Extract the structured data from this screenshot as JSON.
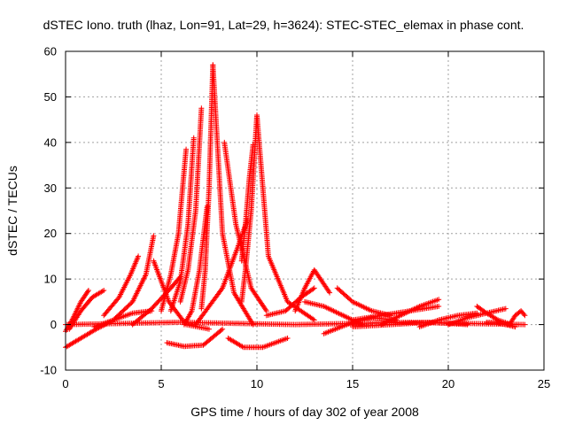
{
  "chart_data": {
    "type": "scatter",
    "title": "dSTEC Iono. truth (lhaz, Lon=91, Lat=29, h=3624): STEC-STEC_elemax in phase cont.",
    "xlabel": "GPS time / hours of day 302 of year 2008",
    "ylabel": "dSTEC  / TECUs",
    "xlim": [
      0,
      25
    ],
    "ylim": [
      -10,
      60
    ],
    "x_ticks": [
      0,
      5,
      10,
      15,
      20,
      25
    ],
    "y_ticks": [
      -10,
      0,
      10,
      20,
      30,
      40,
      50,
      60
    ],
    "grid": true,
    "marker": "+",
    "color": "#ff0000",
    "series": [
      {
        "x": [
          0.0,
          0.4,
          0.8,
          1.2
        ],
        "y": [
          -1.5,
          1.5,
          5.0,
          7.5
        ]
      },
      {
        "x": [
          0.2,
          0.8,
          1.4,
          2.0
        ],
        "y": [
          -1.0,
          3.0,
          6.0,
          7.5
        ]
      },
      {
        "x": [
          0.0,
          0.8,
          1.6,
          2.3
        ],
        "y": [
          -5.0,
          -3.0,
          -1.0,
          0.5
        ]
      },
      {
        "x": [
          1.5,
          2.5,
          3.5,
          4.5
        ],
        "y": [
          -0.5,
          1.0,
          2.5,
          3.0
        ]
      },
      {
        "x": [
          2.0,
          2.8,
          3.4,
          3.8
        ],
        "y": [
          2.0,
          6.0,
          11.0,
          15.0
        ]
      },
      {
        "x": [
          2.5,
          3.5,
          4.2,
          4.6
        ],
        "y": [
          1.0,
          5.0,
          11.0,
          19.5
        ]
      },
      {
        "x": [
          3.5,
          4.5,
          5.5,
          6.0
        ],
        "y": [
          0.0,
          3.5,
          8.0,
          10.5
        ]
      },
      {
        "x": [
          4.6,
          5.4,
          6.3,
          7.5
        ],
        "y": [
          14.0,
          5.0,
          0.0,
          -1.0
        ]
      },
      {
        "x": [
          5.0,
          5.5,
          5.9,
          6.3
        ],
        "y": [
          3.0,
          11.0,
          20.0,
          38.5
        ]
      },
      {
        "x": [
          5.5,
          6.0,
          6.4,
          6.7
        ],
        "y": [
          3.0,
          9.5,
          22.0,
          41.0
        ]
      },
      {
        "x": [
          6.0,
          6.4,
          6.8,
          7.1
        ],
        "y": [
          5.0,
          12.0,
          25.0,
          47.5
        ]
      },
      {
        "x": [
          6.2,
          6.6,
          7.0,
          7.4
        ],
        "y": [
          0.0,
          3.0,
          12.0,
          26.0
        ]
      },
      {
        "x": [
          7.1,
          7.3,
          7.5,
          7.7
        ],
        "y": [
          3.5,
          12.0,
          30.0,
          57.0
        ]
      },
      {
        "x": [
          7.7,
          8.2,
          8.8,
          9.8
        ],
        "y": [
          57.0,
          20.0,
          7.0,
          0.0
        ]
      },
      {
        "x": [
          5.3,
          6.2,
          7.2,
          8.2
        ],
        "y": [
          -4.0,
          -4.8,
          -4.5,
          -1.0
        ]
      },
      {
        "x": [
          6.8,
          8.2,
          9.0,
          9.5
        ],
        "y": [
          0.0,
          8.0,
          17.0,
          23.0
        ]
      },
      {
        "x": [
          8.3,
          8.9,
          9.7,
          10.5
        ],
        "y": [
          40.0,
          22.0,
          8.0,
          3.0
        ]
      },
      {
        "x": [
          9.2,
          9.4,
          9.6,
          9.8
        ],
        "y": [
          14.0,
          22.0,
          32.0,
          39.5
        ]
      },
      {
        "x": [
          9.2,
          9.4,
          9.7,
          10.0
        ],
        "y": [
          5.0,
          12.0,
          25.0,
          46.0
        ]
      },
      {
        "x": [
          10.0,
          10.6,
          11.6,
          13.0
        ],
        "y": [
          46.0,
          15.0,
          5.0,
          1.0
        ]
      },
      {
        "x": [
          8.5,
          9.3,
          10.3,
          11.6
        ],
        "y": [
          -3.0,
          -5.0,
          -5.0,
          -3.0
        ]
      },
      {
        "x": [
          10.5,
          11.5,
          12.3,
          13.0
        ],
        "y": [
          2.0,
          3.0,
          6.0,
          8.0
        ]
      },
      {
        "x": [
          12.0,
          12.5,
          13.0,
          13.8
        ],
        "y": [
          3.0,
          8.0,
          12.0,
          7.0
        ]
      },
      {
        "x": [
          12.5,
          13.5,
          14.5,
          15.5
        ],
        "y": [
          5.0,
          4.0,
          2.0,
          0.0
        ]
      },
      {
        "x": [
          13.5,
          15.0,
          16.0,
          17.3
        ],
        "y": [
          -2.0,
          0.5,
          1.5,
          1.0
        ]
      },
      {
        "x": [
          14.2,
          15.0,
          16.0,
          17.0
        ],
        "y": [
          8.0,
          5.0,
          3.0,
          2.0
        ]
      },
      {
        "x": [
          15.0,
          16.5,
          18.0,
          19.5
        ],
        "y": [
          1.0,
          2.0,
          3.0,
          4.0
        ]
      },
      {
        "x": [
          16.5,
          17.5,
          18.5,
          19.5
        ],
        "y": [
          0.0,
          2.0,
          4.0,
          5.5
        ]
      },
      {
        "x": [
          15.0,
          17.0,
          19.0,
          21.0
        ],
        "y": [
          -0.5,
          0.0,
          0.5,
          0.0
        ]
      },
      {
        "x": [
          18.5,
          19.5,
          20.5,
          21.5
        ],
        "y": [
          -0.5,
          1.0,
          2.0,
          2.5
        ]
      },
      {
        "x": [
          20.0,
          21.0,
          22.0,
          23.0
        ],
        "y": [
          0.0,
          1.5,
          2.5,
          3.5
        ]
      },
      {
        "x": [
          21.5,
          22.0,
          22.6,
          23.3
        ],
        "y": [
          4.0,
          2.5,
          1.0,
          0.0
        ]
      },
      {
        "x": [
          22.0,
          22.5,
          23.0,
          23.5
        ],
        "y": [
          0.5,
          0.5,
          0.0,
          -0.5
        ]
      },
      {
        "x": [
          23.2,
          23.5,
          23.8,
          24.0
        ],
        "y": [
          0.0,
          2.0,
          3.0,
          2.0
        ]
      },
      {
        "x": [
          0.0,
          6.0,
          12.0,
          18.0,
          24.0
        ],
        "y": [
          0.0,
          0.5,
          0.0,
          0.5,
          0.0
        ]
      }
    ]
  }
}
